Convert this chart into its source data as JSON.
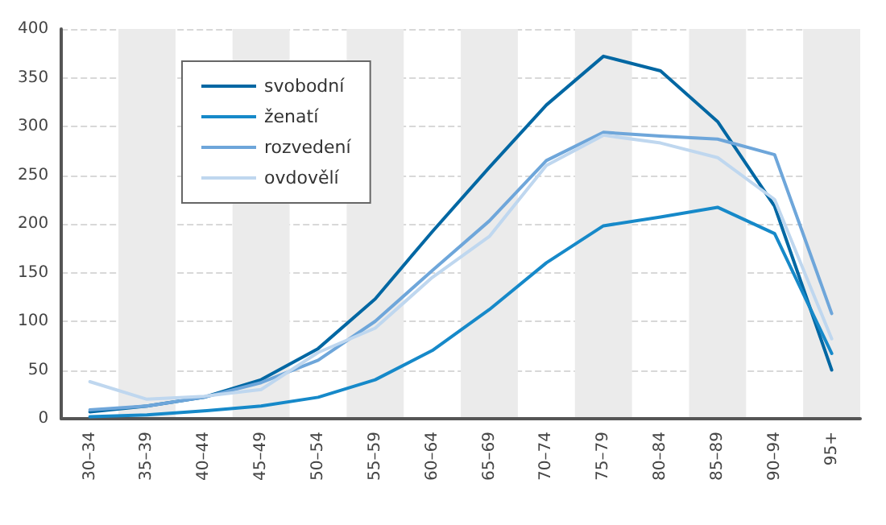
{
  "chart_data": {
    "type": "line",
    "categories": [
      "30–34",
      "35–39",
      "40–44",
      "45–49",
      "50–54",
      "55–59",
      "60–64",
      "65–69",
      "70–74",
      "75–79",
      "80–84",
      "85–89",
      "90–94",
      "95+"
    ],
    "series": [
      {
        "name": "svobodní",
        "color": "#0067a3",
        "values": [
          7,
          13,
          22,
          40,
          72,
          123,
          192,
          258,
          322,
          372,
          357,
          305,
          218,
          50
        ]
      },
      {
        "name": "ženatí",
        "color": "#1689c9",
        "values": [
          2,
          4,
          8,
          13,
          22,
          40,
          70,
          112,
          160,
          198,
          207,
          217,
          190,
          67
        ]
      },
      {
        "name": "rozvedení",
        "color": "#6ea6da",
        "values": [
          9,
          13,
          22,
          37,
          60,
          100,
          152,
          203,
          265,
          294,
          290,
          287,
          271,
          108
        ]
      },
      {
        "name": "ovdovělí",
        "color": "#bfd7ef",
        "values": [
          38,
          20,
          23,
          30,
          68,
          93,
          145,
          187,
          260,
          291,
          283,
          268,
          225,
          82
        ]
      }
    ],
    "ylim": [
      0,
      400
    ],
    "yticks": [
      0,
      50,
      100,
      150,
      200,
      250,
      300,
      350,
      400
    ],
    "grid": "y",
    "legend": "top left",
    "marker": "none",
    "line_style": "solid"
  }
}
